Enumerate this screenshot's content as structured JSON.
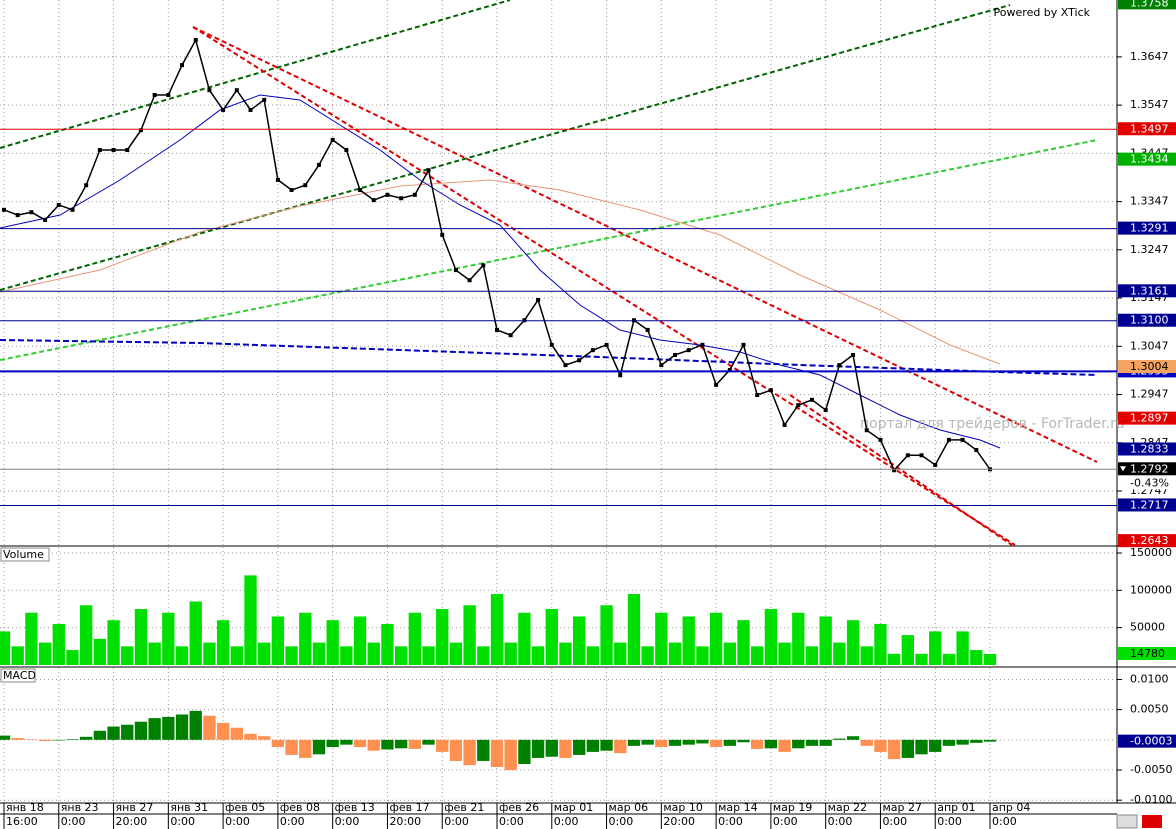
{
  "chart_data": [
    {
      "type": "line",
      "color": "#000000",
      "watermark": "Powered by XTick",
      "watermark2": "портал для трейдеров - ForTrader.ru",
      "change": {
        "value": -0.43,
        "label": "-0.43%"
      },
      "categories": [
        "янв 18",
        null,
        null,
        null,
        "янв 23",
        null,
        null,
        null,
        "янв 27",
        null,
        null,
        null,
        "янв 31",
        null,
        null,
        null,
        "фев 05",
        null,
        null,
        null,
        "фев 08",
        null,
        null,
        null,
        "фев 13",
        null,
        null,
        null,
        "фев 17",
        null,
        null,
        null,
        "фев 21",
        null,
        null,
        null,
        "фев 26",
        null,
        null,
        null,
        "мар 01",
        null,
        null,
        null,
        "мар 06",
        null,
        null,
        null,
        "мар 10",
        null,
        null,
        null,
        "мар 14",
        null,
        null,
        null,
        "мар 19",
        null,
        null,
        null,
        "мар 22",
        null,
        null,
        null,
        "мар 27",
        null,
        null,
        null,
        "апр 01",
        null,
        null,
        null,
        "апр 04"
      ],
      "times": [
        "16:00",
        null,
        null,
        null,
        "0:00",
        null,
        null,
        null,
        "20:00",
        null,
        null,
        null,
        "0:00",
        null,
        null,
        null,
        "0:00",
        null,
        null,
        null,
        "0:00",
        null,
        null,
        null,
        "0:00",
        null,
        null,
        null,
        "20:00",
        null,
        null,
        null,
        "0:00",
        null,
        null,
        null,
        "0:00",
        null,
        null,
        null,
        "0:00",
        null,
        null,
        null,
        "0:00",
        null,
        null,
        null,
        "20:00",
        null,
        null,
        null,
        "0:00",
        null,
        null,
        null,
        "0:00",
        null,
        null,
        null,
        "0:00",
        null,
        null,
        null,
        "0:00",
        null,
        null,
        null,
        "0:00",
        null,
        null,
        null,
        "0:00"
      ],
      "values": [
        1.333,
        1.3319,
        1.3325,
        1.3309,
        1.334,
        1.333,
        1.3381,
        1.3454,
        1.3454,
        1.3454,
        1.3495,
        1.3568,
        1.3568,
        1.363,
        1.3682,
        1.3578,
        1.3537,
        1.3578,
        1.3537,
        1.3558,
        1.3392,
        1.3371,
        1.3381,
        1.3423,
        1.3475,
        1.3454,
        1.3371,
        1.335,
        1.3361,
        1.3354,
        1.3361,
        1.3412,
        1.3278,
        1.3205,
        1.3184,
        1.3215,
        1.3081,
        1.307,
        1.3101,
        1.3143,
        1.305,
        1.3008,
        1.3018,
        1.3039,
        1.305,
        1.2987,
        1.3101,
        1.3081,
        1.3008,
        1.3029,
        1.3039,
        1.305,
        1.2967,
        1.2998,
        1.305,
        1.2946,
        1.2956,
        1.2884,
        1.2925,
        1.2936,
        1.2915,
        1.3008,
        1.3029,
        1.2873,
        1.2853,
        1.279,
        1.2821,
        1.2821,
        1.2801,
        1.2853,
        1.2853,
        1.2832,
        1.2792
      ],
      "ylim": [
        1.2635,
        1.3765
      ],
      "yticks": [
        1.3647,
        1.3547,
        1.3447,
        1.3347,
        1.3247,
        1.3147,
        1.3047,
        1.2947,
        1.2847,
        1.2747
      ],
      "grid": true,
      "levels": [
        {
          "value": 1.3758,
          "color": "#008000",
          "line": false
        },
        {
          "value": 1.3497,
          "color": "#e00000",
          "line": true
        },
        {
          "value": 1.3434,
          "color": "#00b000",
          "line": false
        },
        {
          "value": 1.3291,
          "color": "#000090",
          "line": true
        },
        {
          "value": 1.3161,
          "color": "#000090",
          "line": true
        },
        {
          "value": 1.31,
          "label": "1.3100",
          "color": "#000090",
          "line": true
        },
        {
          "value": 1.2995,
          "color": "#0000c0",
          "line": true
        },
        {
          "value": 1.3004,
          "color": "#f4a460",
          "line": false
        },
        {
          "value": 1.2897,
          "color": "#e00000",
          "line": false
        },
        {
          "value": 1.2833,
          "color": "#000090",
          "line": false
        },
        {
          "value": 1.2717,
          "color": "#000090",
          "line": true
        },
        {
          "value": 1.2643,
          "color": "#e00000",
          "line": false
        },
        {
          "value": 1.2792,
          "color": "#000000",
          "line": true
        }
      ]
    },
    {
      "type": "bar",
      "label": "Volume",
      "color": "#00e000",
      "values": [
        45000,
        25000,
        70000,
        30000,
        55000,
        20000,
        80000,
        35000,
        60000,
        25000,
        75000,
        30000,
        70000,
        25000,
        85000,
        30000,
        60000,
        25000,
        120000,
        30000,
        65000,
        25000,
        70000,
        30000,
        60000,
        25000,
        65000,
        30000,
        55000,
        25000,
        70000,
        25000,
        75000,
        30000,
        80000,
        25000,
        95000,
        30000,
        70000,
        25000,
        75000,
        30000,
        65000,
        25000,
        80000,
        30000,
        95000,
        25000,
        70000,
        30000,
        65000,
        25000,
        70000,
        30000,
        60000,
        25000,
        75000,
        30000,
        70000,
        25000,
        65000,
        30000,
        60000,
        25000,
        55000,
        15000,
        40000,
        15000,
        45000,
        15000,
        45000,
        20000,
        14780
      ],
      "ylim": [
        0,
        158000
      ],
      "yticks": [
        150000,
        100000,
        50000
      ],
      "grid": true,
      "tag": 14780,
      "tag_color": "#00e000"
    },
    {
      "type": "bar",
      "label": "MACD",
      "up_color": "#008000",
      "down_color": "#ff9050",
      "values": [
        0.0007,
        0.0003,
        0.0001,
        -0.0002,
        -0.0001,
        0.0001,
        0.0005,
        0.0015,
        0.0022,
        0.0025,
        0.003,
        0.0036,
        0.0038,
        0.0042,
        0.0048,
        0.004,
        0.0028,
        0.002,
        0.001,
        0.0006,
        -0.0012,
        -0.0025,
        -0.003,
        -0.0024,
        -0.0012,
        -0.0008,
        -0.0012,
        -0.0018,
        -0.0016,
        -0.0014,
        -0.0015,
        -0.0008,
        -0.002,
        -0.0035,
        -0.0042,
        -0.0035,
        -0.0045,
        -0.005,
        -0.004,
        -0.003,
        -0.0028,
        -0.003,
        -0.0025,
        -0.002,
        -0.0018,
        -0.0022,
        -0.001,
        -0.0008,
        -0.0012,
        -0.001,
        -0.0008,
        -0.0006,
        -0.0012,
        -0.001,
        -0.0004,
        -0.0015,
        -0.0014,
        -0.002,
        -0.0014,
        -0.001,
        -0.001,
        0.0002,
        0.0006,
        -0.001,
        -0.002,
        -0.0032,
        -0.003,
        -0.0024,
        -0.002,
        -0.001,
        -0.0008,
        -0.0005,
        -0.0003
      ],
      "ylim": [
        -0.0103,
        0.0119
      ],
      "yticks": [
        {
          "value": 0.01,
          "label": "0.0100"
        },
        {
          "value": 0.005,
          "label": "0.0050"
        },
        {
          "value": -0.005,
          "label": "-0.0050"
        },
        {
          "value": -0.01,
          "label": "-0.0100"
        }
      ],
      "grid": true,
      "tag": {
        "value": -0.0003,
        "label": "-0.0003"
      },
      "tag_color": "#000090"
    }
  ]
}
